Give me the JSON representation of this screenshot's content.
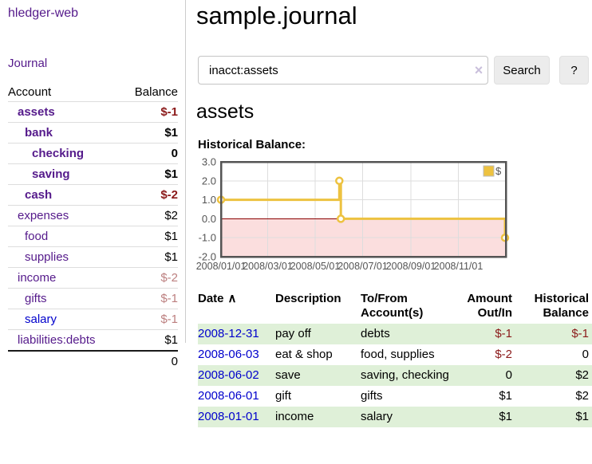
{
  "app": {
    "title": "hledger-web",
    "nav": {
      "journal": "Journal"
    }
  },
  "colors": {
    "accent_purple": "#551A8B",
    "link_blue": "#0000CC",
    "negative_strong": "#8B1A1A",
    "negative_soft": "#BC7F7F",
    "positive_row_green": "#DFF0D8",
    "series_gold": "#EDC240"
  },
  "icons": {
    "sort_ascending": "∧",
    "clear": "×"
  },
  "sidebar": {
    "header": {
      "account": "Account",
      "balance": "Balance"
    },
    "accounts": [
      {
        "name": "assets",
        "balance": "$-1"
      },
      {
        "name": "bank",
        "balance": "$1"
      },
      {
        "name": "checking",
        "balance": "0"
      },
      {
        "name": "saving",
        "balance": "$1"
      },
      {
        "name": "cash",
        "balance": "$-2"
      },
      {
        "name": "expenses",
        "balance": "$2"
      },
      {
        "name": "food",
        "balance": "$1"
      },
      {
        "name": "supplies",
        "balance": "$1"
      },
      {
        "name": "income",
        "balance": "$-2"
      },
      {
        "name": "gifts",
        "balance": "$-1"
      },
      {
        "name": "salary",
        "balance": "$-1"
      },
      {
        "name": "liabilities:debts",
        "balance": "$1"
      }
    ],
    "total": "0"
  },
  "main": {
    "title": "sample.journal",
    "search": {
      "value": "inacct:assets",
      "button": "Search",
      "help": "?"
    },
    "account_title": "assets",
    "chart_label": "Historical Balance:"
  },
  "chart_data": {
    "type": "line",
    "title": "Historical Balance",
    "step": true,
    "grid": true,
    "legend_position": "top-right",
    "x_range": [
      "2008-01-01",
      "2009-01-01"
    ],
    "ylim": [
      -2,
      3
    ],
    "y_ticks": [
      3,
      2,
      1,
      0,
      -1,
      -2
    ],
    "x_ticks": [
      {
        "label": "2008/01/01",
        "date": "2008-01-01"
      },
      {
        "label": "2008/03/01",
        "date": "2008-03-01"
      },
      {
        "label": "2008/05/01",
        "date": "2008-05-01"
      },
      {
        "label": "2008/07/01",
        "date": "2008-07-01"
      },
      {
        "label": "2008/09/01",
        "date": "2008-09-01"
      },
      {
        "label": "2008/11/01",
        "date": "2008-11-01"
      }
    ],
    "series": [
      {
        "name": "$",
        "points": [
          {
            "date": "2008-01-01",
            "value": 1
          },
          {
            "date": "2008-06-01",
            "value": 2
          },
          {
            "date": "2008-06-03",
            "value": 0
          },
          {
            "date": "2008-12-31",
            "value": -1
          }
        ]
      }
    ],
    "colors": {
      "series": "#EDC240",
      "zero_line": "#8B0000",
      "negative_region": "#FBDEDE",
      "grid": "#DDDDDD",
      "border": "#545454",
      "axis_text": "#545454"
    }
  },
  "register": {
    "columns": {
      "date": "Date",
      "description": "Description",
      "accounts": "To/From Account(s)",
      "amount": "Amount Out/In",
      "balance": "Historical Balance"
    },
    "rows": [
      {
        "date": "2008-12-31",
        "description": "pay off",
        "accounts": "debts",
        "amount": "$-1",
        "balance": "$-1"
      },
      {
        "date": "2008-06-03",
        "description": "eat & shop",
        "accounts": "food, supplies",
        "amount": "$-2",
        "balance": "0"
      },
      {
        "date": "2008-06-02",
        "description": "save",
        "accounts": "saving, checking",
        "amount": "0",
        "balance": "$2"
      },
      {
        "date": "2008-06-01",
        "description": "gift",
        "accounts": "gifts",
        "amount": "$1",
        "balance": "$2"
      },
      {
        "date": "2008-01-01",
        "description": "income",
        "accounts": "salary",
        "amount": "$1",
        "balance": "$1"
      }
    ]
  }
}
